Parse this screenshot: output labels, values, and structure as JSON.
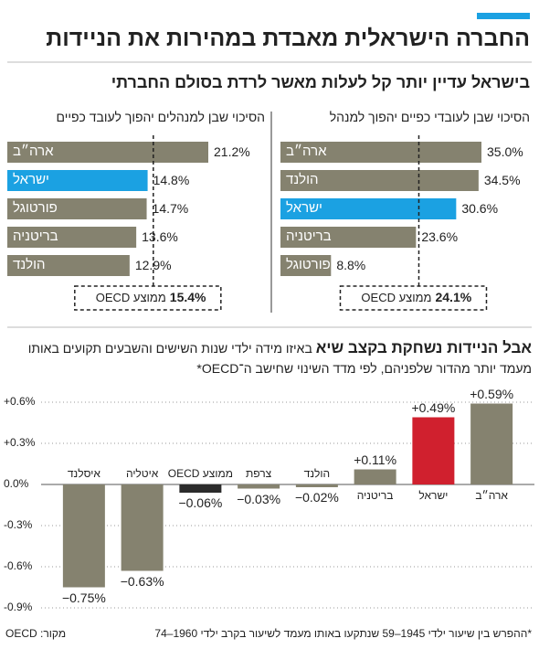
{
  "header": {
    "title": "החברה הישראלית מאבדת במהירות את הניידות",
    "subtitle": "בישראל עדיין יותר קל לעלות מאשר לרדת בסולם החברתי"
  },
  "chart_data": [
    {
      "type": "bar",
      "orientation": "horizontal",
      "title": "הסיכוי שבן לעובדי כפיים יהפוך למנהל",
      "categories": [
        "ארה״ב",
        "הולנד",
        "ישראל",
        "בריטניה",
        "פורטוגל"
      ],
      "values": [
        35.0,
        34.5,
        30.6,
        23.6,
        8.8
      ],
      "value_labels": [
        "35.0%",
        "34.5%",
        "30.6%",
        "23.6%",
        "8.8%"
      ],
      "colors": [
        "#85826f",
        "#85826f",
        "#1ba1e2",
        "#85826f",
        "#85826f"
      ],
      "average": {
        "label": "ממוצע OECD",
        "value": 24.1,
        "value_label": "24.1%"
      }
    },
    {
      "type": "bar",
      "orientation": "horizontal",
      "title": "הסיכוי שבן למנהלים יהפוך לעובד כפיים",
      "categories": [
        "ארה״ב",
        "ישראל",
        "פורטוגל",
        "בריטניה",
        "הולנד"
      ],
      "values": [
        21.2,
        14.8,
        14.7,
        13.6,
        12.9
      ],
      "value_labels": [
        "21.2%",
        "14.8%",
        "14.7%",
        "13.6%",
        "12.9%"
      ],
      "colors": [
        "#85826f",
        "#1ba1e2",
        "#85826f",
        "#85826f",
        "#85826f"
      ],
      "average": {
        "label": "ממוצע OECD",
        "value": 15.4,
        "value_label": "15.4%"
      }
    },
    {
      "type": "bar",
      "orientation": "vertical",
      "title": "אבל הניידות נשחקת בקצב שיא",
      "subtitle": "באיזו מידה ילדי שנות השישים והשבעים תקועים באותו מעמד יותר מהדור שלפניהם, לפי מדד השינוי שחישב ה־OECD*",
      "categories": [
        "איסלנד",
        "איטליה",
        "ממוצע OECD",
        "צרפת",
        "הולנד",
        "בריטניה",
        "ישראל",
        "ארה״ב"
      ],
      "values": [
        -0.75,
        -0.63,
        -0.06,
        -0.03,
        -0.02,
        0.11,
        0.49,
        0.59
      ],
      "value_labels": [
        "−0.75%",
        "−0.63%",
        "−0.06%",
        "−0.03%",
        "−0.02%",
        "+0.11%",
        "+0.49%",
        "+0.59%"
      ],
      "colors": [
        "#85826f",
        "#85826f",
        "#2b2b2b",
        "#85826f",
        "#85826f",
        "#85826f",
        "#d0202e",
        "#85826f"
      ],
      "ylim": [
        -0.9,
        0.6
      ],
      "yticks": [
        {
          "value": 0.6,
          "label": "+0.6%"
        },
        {
          "value": 0.3,
          "label": "+0.3%"
        },
        {
          "value": 0,
          "label": "0.0%"
        },
        {
          "value": -0.3,
          "label": "-0.3%"
        },
        {
          "value": -0.6,
          "label": "-0.6%"
        },
        {
          "value": -0.9,
          "label": "-0.9%"
        }
      ],
      "grid": true
    }
  ],
  "footer": {
    "note": "*ההפרש בין שיעור ילדי 1945–59 שנתקעו באותו מעמד לשיעור בקרב ילדי 1960–74",
    "source": "מקור: OECD"
  }
}
